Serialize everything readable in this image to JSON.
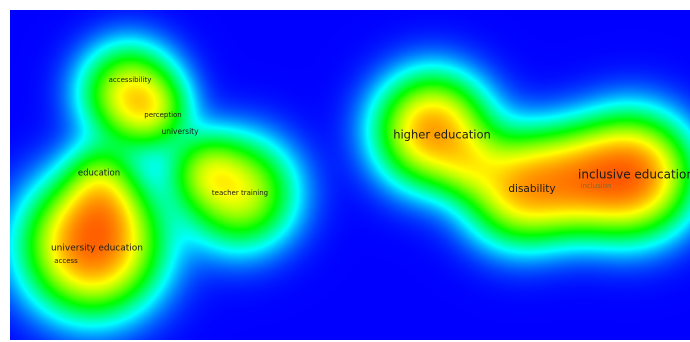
{
  "map": {
    "type": "density-visualization",
    "colormap": [
      "#0000ff",
      "#00ffff",
      "#00ff00",
      "#ffff00",
      "#ff0000"
    ],
    "background_color": "#0000ff",
    "terms": [
      {
        "label": "accessibility",
        "weight": 0.55
      },
      {
        "label": "perception",
        "weight": 0.5
      },
      {
        "label": "university",
        "weight": 0.6
      },
      {
        "label": "education",
        "weight": 0.65
      },
      {
        "label": "teacher training",
        "weight": 0.5
      },
      {
        "label": "university education",
        "weight": 0.75
      },
      {
        "label": "access",
        "weight": 0.45
      },
      {
        "label": "higher education",
        "weight": 0.85
      },
      {
        "label": "disability",
        "weight": 0.75
      },
      {
        "label": "inclusive education",
        "weight": 0.95
      },
      {
        "label": "inclusion",
        "weight": 0.35
      }
    ]
  }
}
